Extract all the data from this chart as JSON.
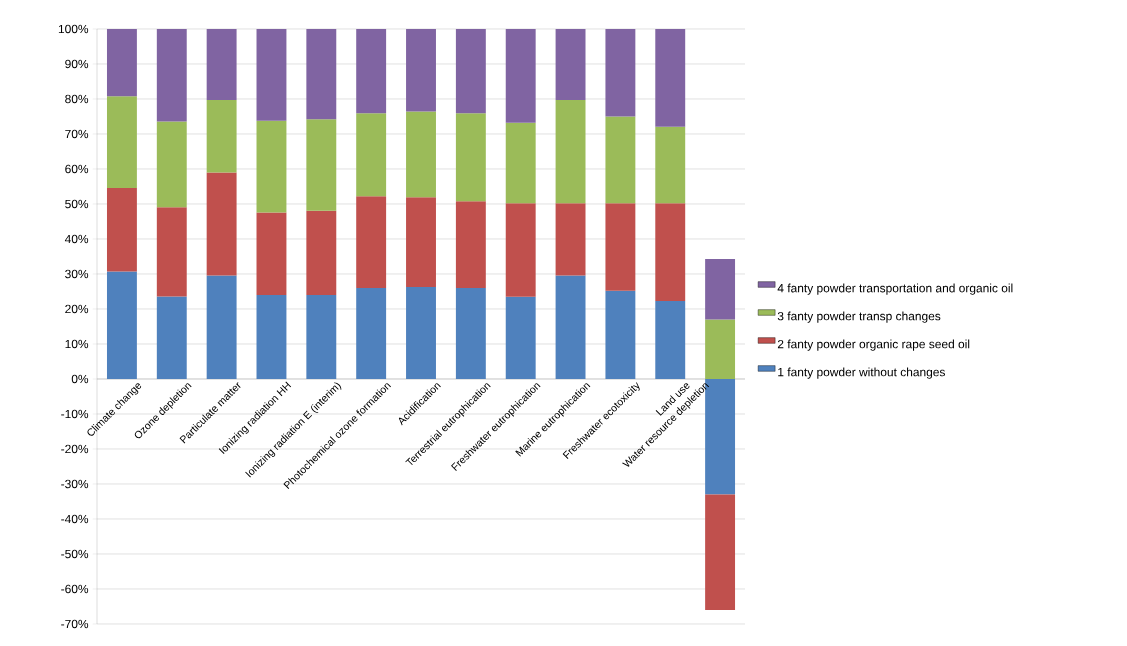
{
  "chart_data": {
    "type": "bar",
    "stacked": true,
    "categories": [
      "Climate change",
      "Ozone depletion",
      "Particulate matter",
      "Ionizing radiation HH",
      "Ionizing radiation E (interim)",
      "Photochemical ozone formation",
      "Acidification",
      "Terrestrial eutrophication",
      "Freshwater eutrophication",
      "Marine eutrophication",
      "Freshwater ecotoxicity",
      "Land use",
      "Water resource depletion"
    ],
    "series": [
      {
        "name": "1 fanty powder without changes",
        "color": "#4f81bd",
        "values": [
          30.7,
          23.6,
          29.6,
          24.0,
          24.0,
          26.0,
          26.3,
          26.0,
          23.5,
          29.6,
          25.2,
          22.3,
          -33.0
        ]
      },
      {
        "name": "2 fanty powder organic rape seed oil",
        "color": "#c0504d",
        "values": [
          23.9,
          25.5,
          29.4,
          23.6,
          24.1,
          26.2,
          25.6,
          24.8,
          26.7,
          20.6,
          25.0,
          27.9,
          -33.0
        ]
      },
      {
        "name": "3 fanty powder transp changes",
        "color": "#9bbb59",
        "values": [
          26.2,
          24.5,
          20.7,
          26.2,
          26.1,
          23.7,
          24.5,
          25.1,
          23.0,
          29.5,
          24.8,
          21.9,
          17.0
        ]
      },
      {
        "name": "4 fanty powder transportation and organic oil",
        "color": "#8064a2",
        "values": [
          19.2,
          26.4,
          20.3,
          26.2,
          25.8,
          24.1,
          23.6,
          24.1,
          26.8,
          20.3,
          25.0,
          27.9,
          17.3
        ]
      }
    ],
    "ylim": [
      -70,
      100
    ],
    "yticks": [
      {
        "value": -70,
        "label": "-70%"
      },
      {
        "value": -60,
        "label": "-60%"
      },
      {
        "value": -50,
        "label": "-50%"
      },
      {
        "value": -40,
        "label": "-40%"
      },
      {
        "value": -30,
        "label": "-30%"
      },
      {
        "value": -20,
        "label": "-20%"
      },
      {
        "value": -10,
        "label": "-10%"
      },
      {
        "value": 0,
        "label": "0%"
      },
      {
        "value": 10,
        "label": "10%"
      },
      {
        "value": 20,
        "label": "20%"
      },
      {
        "value": 30,
        "label": "30%"
      },
      {
        "value": 40,
        "label": "40%"
      },
      {
        "value": 50,
        "label": "50%"
      },
      {
        "value": 60,
        "label": "60%"
      },
      {
        "value": 70,
        "label": "70%"
      },
      {
        "value": 80,
        "label": "80%"
      },
      {
        "value": 90,
        "label": "90%"
      },
      {
        "value": 100,
        "label": "100%"
      }
    ],
    "grid": "y",
    "legend": "right"
  }
}
